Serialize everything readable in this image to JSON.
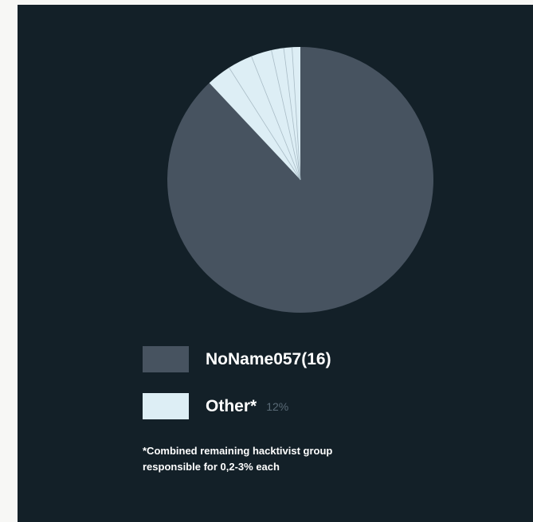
{
  "chart_data": {
    "type": "pie",
    "slices": [
      {
        "label": "NoName057(16)",
        "value": 88,
        "color": "#475360"
      },
      {
        "label": "Other*",
        "value": 12,
        "color": "#ddeef5",
        "display_value": "12%"
      }
    ],
    "other_breakdown": [
      3,
      3,
      2.5,
      1.5,
      1,
      1
    ],
    "legend": {
      "items": [
        {
          "label": "NoName057(16)",
          "color": "#475360",
          "value_text": ""
        },
        {
          "label": "Other*",
          "color": "#ddeef5",
          "value_text": "12%"
        }
      ]
    },
    "footnote": "*Combined remaining hacktivist group responsible for 0,2-3% each"
  },
  "colors": {
    "panel_background": "#132028",
    "page_background": "#f7f7f5",
    "divider": "#a9bcc6"
  }
}
